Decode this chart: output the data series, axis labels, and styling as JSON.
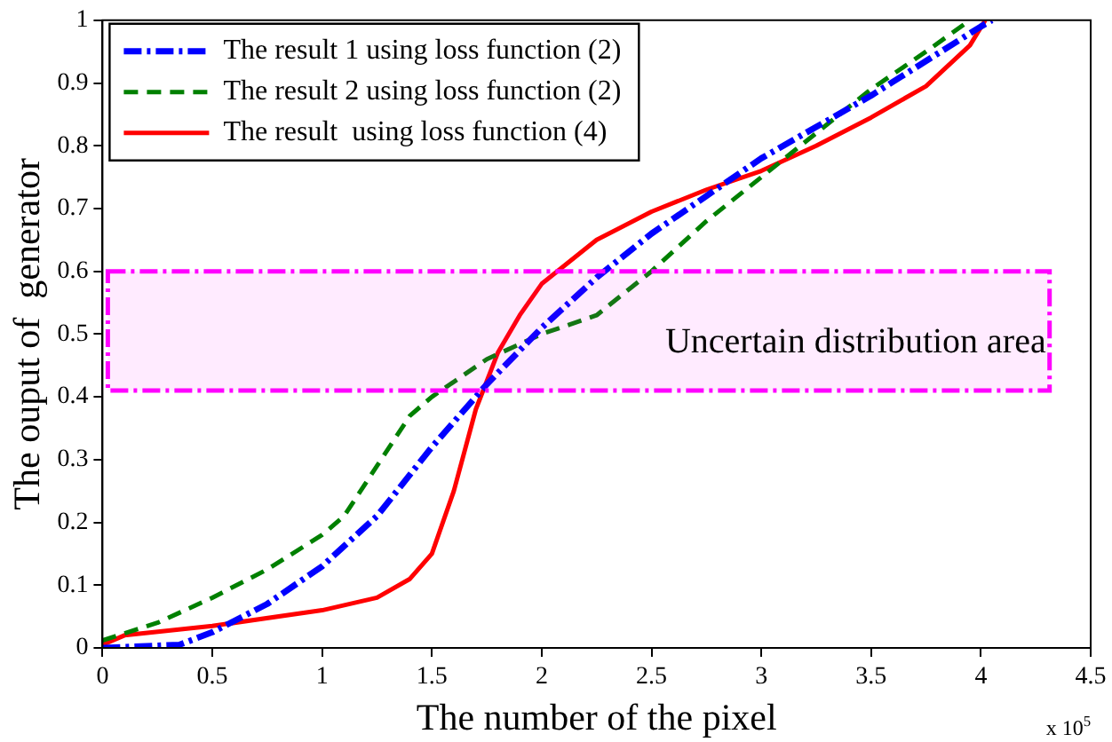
{
  "chart_data": {
    "type": "line",
    "xlabel": "The number of the pixel",
    "ylabel": "The ouput of  generator",
    "xlim": [
      0,
      4.5
    ],
    "xticks": [
      0,
      0.5,
      1,
      1.5,
      2,
      2.5,
      3,
      3.5,
      4,
      4.5
    ],
    "ylim": [
      0,
      1
    ],
    "yticks": [
      0,
      0.1,
      0.2,
      0.3,
      0.4,
      0.5,
      0.6,
      0.7,
      0.8,
      0.9,
      1
    ],
    "grid": false,
    "legend": "top left",
    "marker": "none",
    "series": [
      {
        "name": "The result 1 using loss function (2)",
        "color": "#0000ff",
        "line_style": "dashdot",
        "x": [
          0,
          0.35,
          0.5,
          0.75,
          1,
          1.25,
          1.5,
          1.75,
          2,
          2.25,
          2.5,
          2.75,
          3,
          3.25,
          3.5,
          3.75,
          4,
          4.05
        ],
        "values": [
          0,
          0.005,
          0.025,
          0.07,
          0.13,
          0.21,
          0.32,
          0.42,
          0.51,
          0.59,
          0.66,
          0.72,
          0.78,
          0.83,
          0.88,
          0.935,
          0.99,
          1
        ]
      },
      {
        "name": "The result 2 using loss function (2)",
        "color": "#008000",
        "line_style": "dashed",
        "x": [
          0,
          0.25,
          0.5,
          0.75,
          1,
          1.1,
          1.25,
          1.4,
          1.5,
          1.75,
          2,
          2.25,
          2.5,
          2.75,
          3,
          3.25,
          3.5,
          3.75,
          3.95
        ],
        "values": [
          0.012,
          0.04,
          0.08,
          0.125,
          0.18,
          0.21,
          0.29,
          0.37,
          0.4,
          0.46,
          0.5,
          0.53,
          0.6,
          0.68,
          0.75,
          0.82,
          0.89,
          0.95,
          1
        ]
      },
      {
        "name": "The result  using loss function (4)",
        "color": "#ff0000",
        "line_style": "solid",
        "x": [
          0,
          0.1,
          0.5,
          1,
          1.25,
          1.4,
          1.5,
          1.6,
          1.7,
          1.8,
          1.9,
          2,
          2.25,
          2.5,
          2.75,
          3,
          3.25,
          3.5,
          3.75,
          3.95,
          4.02
        ],
        "values": [
          0.005,
          0.02,
          0.035,
          0.06,
          0.08,
          0.11,
          0.15,
          0.25,
          0.38,
          0.47,
          0.53,
          0.58,
          0.65,
          0.695,
          0.73,
          0.76,
          0.8,
          0.845,
          0.895,
          0.96,
          1
        ]
      }
    ],
    "bands": [
      {
        "axis": "y",
        "from": 0.41,
        "to": 0.6,
        "label": "Uncertain distribution area",
        "color": "#ff00ff"
      }
    ],
    "annotations": [
      "x 10$^{5}$"
    ]
  }
}
